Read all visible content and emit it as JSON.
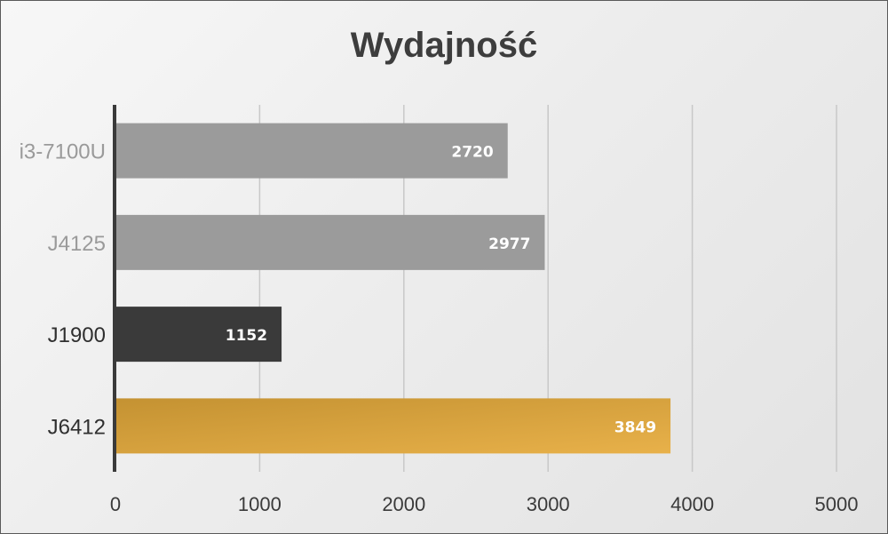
{
  "chart_data": {
    "type": "bar",
    "orientation": "horizontal",
    "title": "Wydajność",
    "xlabel": "",
    "ylabel": "",
    "categories": [
      "i3-7100U",
      "J4125",
      "J1900",
      "J6412"
    ],
    "values": [
      2720,
      2977,
      1152,
      3849
    ],
    "data_labels": [
      "2720",
      "2977",
      "1152",
      "3849"
    ],
    "bar_colors": [
      "#9b9b9b",
      "#9b9b9b",
      "#3a3a3a",
      "#dba63e"
    ],
    "label_colors": [
      "#9a9a9a",
      "#9a9a9a",
      "#2f2f2f",
      "#2f2f2f"
    ],
    "xlim": [
      0,
      5000
    ],
    "x_ticks": [
      0,
      1000,
      2000,
      3000,
      4000,
      5000
    ],
    "x_tick_labels": [
      "0",
      "1000",
      "2000",
      "3000",
      "4000",
      "5000"
    ],
    "grid": true,
    "legend": "none"
  }
}
